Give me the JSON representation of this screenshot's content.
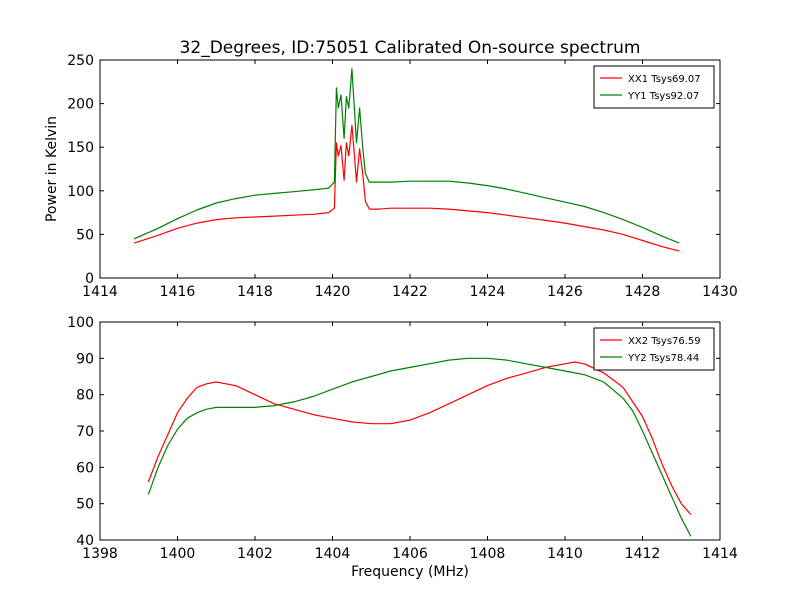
{
  "figure_title": "32_Degrees, ID:75051 Calibrated On-source spectrum",
  "chart_data": [
    {
      "type": "line",
      "ylabel": "Power in Kelvin",
      "xlabel": "",
      "xlim": [
        1414,
        1430
      ],
      "ylim": [
        0,
        250
      ],
      "xticks": [
        "1414",
        "1416",
        "1418",
        "1420",
        "1422",
        "1424",
        "1426",
        "1428",
        "1430"
      ],
      "yticks": [
        "0",
        "50",
        "100",
        "150",
        "200",
        "250"
      ],
      "legend_position": "top-right",
      "series": [
        {
          "name": "XX1 Tsys69.07",
          "color": "#ff0000",
          "x": [
            1414.88,
            1415.5,
            1416.0,
            1416.5,
            1417.0,
            1417.5,
            1418.0,
            1418.5,
            1419.0,
            1419.5,
            1419.9,
            1420.05,
            1420.1,
            1420.15,
            1420.22,
            1420.3,
            1420.36,
            1420.42,
            1420.5,
            1420.55,
            1420.62,
            1420.7,
            1420.78,
            1420.85,
            1420.95,
            1421.2,
            1421.5,
            1422.0,
            1422.5,
            1423.0,
            1423.5,
            1424.0,
            1424.5,
            1425.0,
            1425.5,
            1426.0,
            1426.5,
            1427.0,
            1427.5,
            1428.0,
            1428.5,
            1428.95
          ],
          "y": [
            40,
            49,
            57,
            63,
            67,
            69,
            70,
            71,
            72,
            73,
            75,
            80,
            155,
            140,
            152,
            112,
            155,
            140,
            175,
            150,
            110,
            148,
            120,
            88,
            79,
            79,
            80,
            80,
            80,
            79,
            77,
            75,
            72,
            69,
            66,
            63,
            59,
            55,
            50,
            43,
            36,
            31
          ]
        },
        {
          "name": "YY1 Tsys92.07",
          "color": "#008000",
          "x": [
            1414.88,
            1415.5,
            1416.0,
            1416.5,
            1417.0,
            1417.5,
            1418.0,
            1418.5,
            1419.0,
            1419.5,
            1419.9,
            1420.05,
            1420.1,
            1420.15,
            1420.22,
            1420.3,
            1420.36,
            1420.42,
            1420.5,
            1420.55,
            1420.62,
            1420.7,
            1420.78,
            1420.85,
            1420.95,
            1421.2,
            1421.5,
            1422.0,
            1422.5,
            1423.0,
            1423.5,
            1424.0,
            1424.5,
            1425.0,
            1425.5,
            1426.0,
            1426.5,
            1427.0,
            1427.5,
            1428.0,
            1428.5,
            1428.95
          ],
          "y": [
            45,
            57,
            68,
            78,
            86,
            91,
            95,
            97,
            99,
            101,
            103,
            110,
            218,
            195,
            210,
            160,
            208,
            195,
            240,
            205,
            155,
            195,
            150,
            120,
            110,
            110,
            110,
            111,
            111,
            111,
            109,
            106,
            102,
            97,
            92,
            87,
            82,
            75,
            67,
            58,
            48,
            40
          ]
        }
      ]
    },
    {
      "type": "line",
      "xlabel": "Frequency (MHz)",
      "ylabel": "",
      "xlim": [
        1398,
        1414
      ],
      "ylim": [
        40,
        100
      ],
      "xticks": [
        "1398",
        "1400",
        "1402",
        "1404",
        "1406",
        "1408",
        "1410",
        "1412",
        "1414"
      ],
      "yticks": [
        "40",
        "50",
        "60",
        "70",
        "80",
        "90",
        "100"
      ],
      "legend_position": "top-right",
      "series": [
        {
          "name": "XX2 Tsys76.59",
          "color": "#ff0000",
          "x": [
            1399.25,
            1399.5,
            1399.75,
            1400.0,
            1400.25,
            1400.5,
            1400.75,
            1401.0,
            1401.25,
            1401.5,
            1402.0,
            1402.5,
            1403.0,
            1403.5,
            1404.0,
            1404.5,
            1405.0,
            1405.5,
            1406.0,
            1406.5,
            1407.0,
            1407.5,
            1408.0,
            1408.5,
            1409.0,
            1409.5,
            1410.0,
            1410.25,
            1410.5,
            1411.0,
            1411.5,
            1412.0,
            1412.25,
            1412.5,
            1412.75,
            1413.0,
            1413.25
          ],
          "y": [
            56,
            63,
            69,
            75,
            79,
            82,
            83,
            83.5,
            83,
            82.5,
            80,
            77.5,
            76,
            74.5,
            73.5,
            72.5,
            72,
            72,
            73,
            75,
            77.5,
            80,
            82.5,
            84.5,
            86,
            87.5,
            88.5,
            89,
            88.5,
            86,
            82,
            74,
            68,
            61,
            55,
            50,
            47
          ]
        },
        {
          "name": "YY2 Tsys78.44",
          "color": "#008000",
          "x": [
            1399.25,
            1399.5,
            1399.75,
            1400.0,
            1400.25,
            1400.5,
            1400.75,
            1401.0,
            1401.5,
            1402.0,
            1402.5,
            1403.0,
            1403.5,
            1404.0,
            1404.5,
            1405.0,
            1405.5,
            1406.0,
            1406.5,
            1407.0,
            1407.5,
            1408.0,
            1408.5,
            1409.0,
            1409.5,
            1410.0,
            1410.5,
            1411.0,
            1411.5,
            1411.75,
            1412.0,
            1412.25,
            1412.5,
            1412.75,
            1413.0,
            1413.25
          ],
          "y": [
            52.5,
            60,
            66,
            70.5,
            73.5,
            75,
            76,
            76.5,
            76.5,
            76.5,
            77,
            78,
            79.5,
            81.5,
            83.5,
            85,
            86.5,
            87.5,
            88.5,
            89.5,
            90,
            90,
            89.5,
            88.5,
            87.5,
            86.5,
            85.5,
            83.5,
            79,
            75.5,
            70,
            64,
            58,
            52,
            46,
            41
          ]
        }
      ]
    }
  ]
}
